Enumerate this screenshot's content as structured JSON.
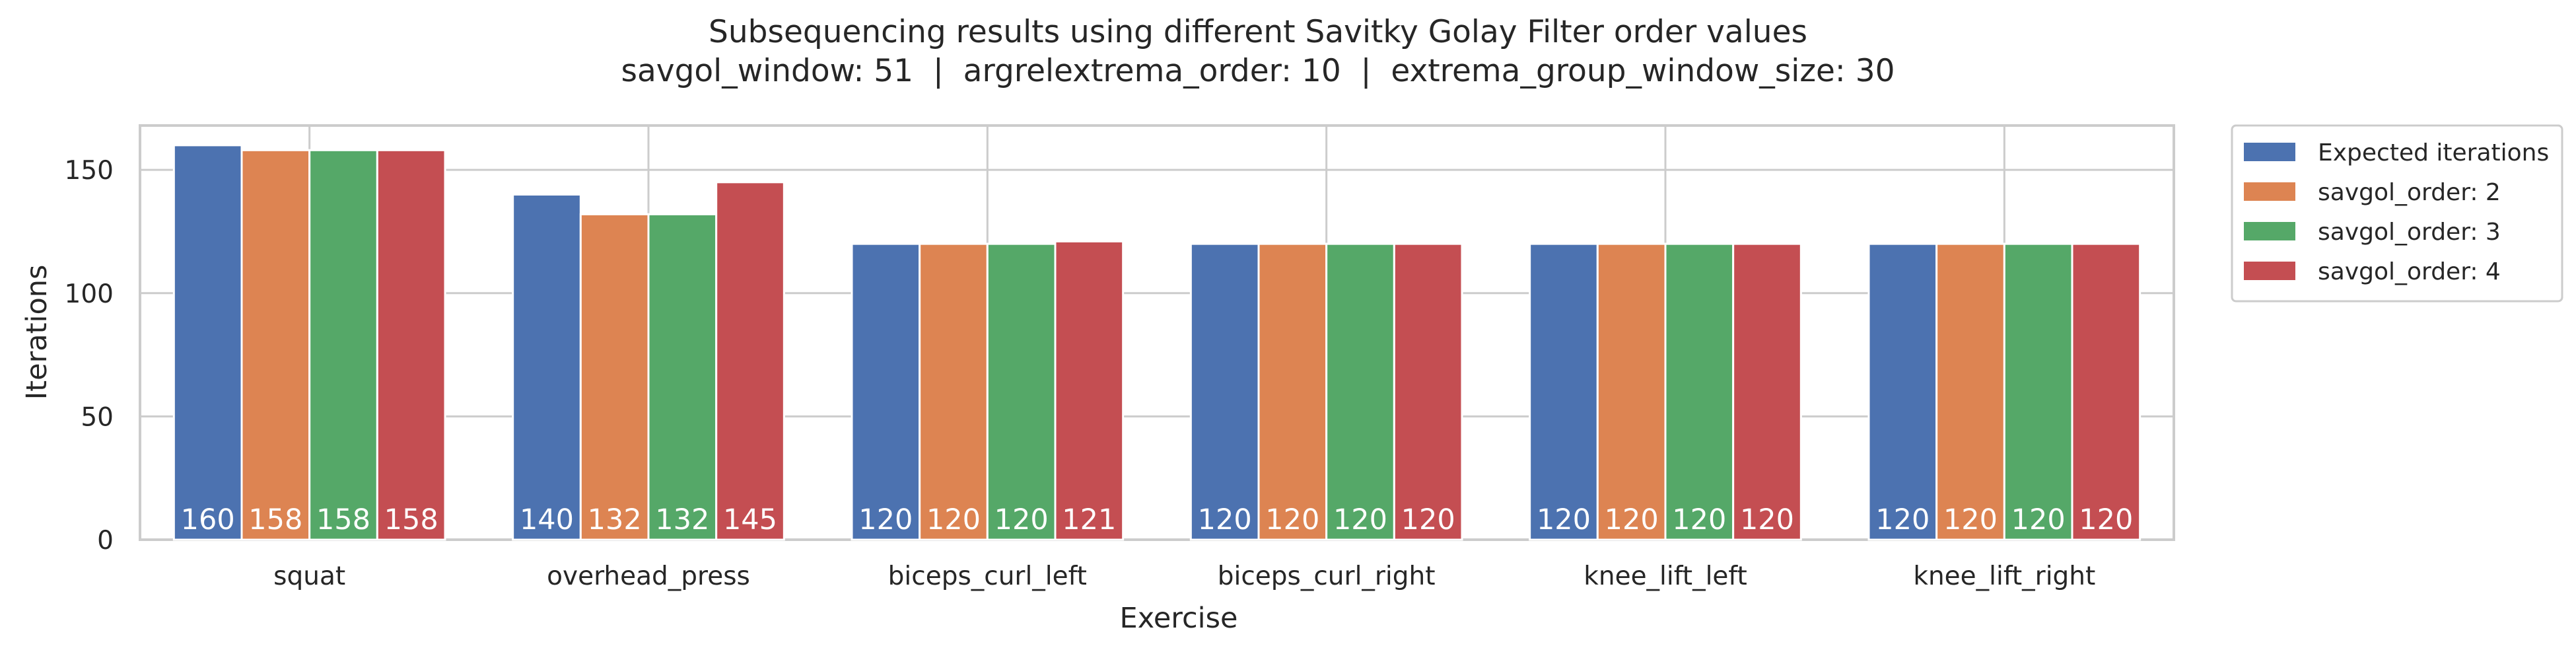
{
  "chart_data": {
    "type": "bar",
    "title": "Subsequencing results using different Savitky Golay Filter order values",
    "subtitle": "savgol_window: 51  |  argrelextrema_order: 10  |  extrema_group_window_size: 30",
    "xlabel": "Exercise",
    "ylabel": "Iterations",
    "ylim": [
      0,
      168
    ],
    "yticks": [
      0,
      50,
      100,
      150
    ],
    "grid": true,
    "legend_position": "outside-right-top",
    "categories": [
      "squat",
      "overhead_press",
      "biceps_curl_left",
      "biceps_curl_right",
      "knee_lift_left",
      "knee_lift_right"
    ],
    "series": [
      {
        "name": "Expected iterations",
        "color": "#4c72b0",
        "values": [
          160,
          140,
          120,
          120,
          120,
          120
        ]
      },
      {
        "name": "savgol_order: 2",
        "color": "#dd8452",
        "values": [
          158,
          132,
          120,
          120,
          120,
          120
        ]
      },
      {
        "name": "savgol_order: 3",
        "color": "#55a868",
        "values": [
          158,
          132,
          120,
          120,
          120,
          120
        ]
      },
      {
        "name": "savgol_order: 4",
        "color": "#c44e52",
        "values": [
          158,
          145,
          121,
          120,
          120,
          120
        ]
      }
    ]
  }
}
